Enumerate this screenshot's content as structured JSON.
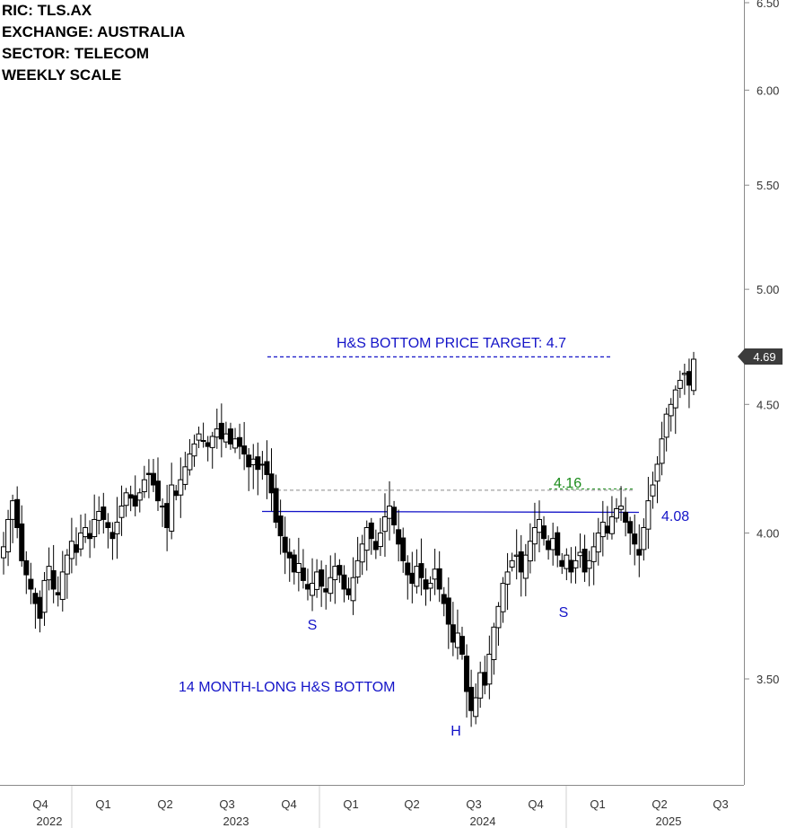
{
  "info": {
    "ric": "RIC:  TLS.AX",
    "exchange": "EXCHANGE:  AUSTRALIA",
    "sector": "SECTOR: TELECOM",
    "scale": "WEEKLY SCALE"
  },
  "chart_data": {
    "type": "candlestick",
    "ylim": [
      3.25,
      6.5
    ],
    "y_scale": "log",
    "yticks": [
      "6.50",
      "6.00",
      "5.50",
      "5.00",
      "4.50",
      "4.00",
      "3.50"
    ],
    "ytick_values": [
      6.5,
      6.0,
      5.5,
      5.0,
      4.5,
      4.0,
      3.5
    ],
    "last_price": "4.69",
    "x_quarters": [
      {
        "label": "Q4",
        "year": "2022"
      },
      {
        "label": "Q1",
        "year": ""
      },
      {
        "label": "Q2",
        "year": ""
      },
      {
        "label": "Q3",
        "year": "2023"
      },
      {
        "label": "Q4",
        "year": ""
      },
      {
        "label": "Q1",
        "year": ""
      },
      {
        "label": "Q2",
        "year": ""
      },
      {
        "label": "Q3",
        "year": "2024"
      },
      {
        "label": "Q4",
        "year": ""
      },
      {
        "label": "Q1",
        "year": ""
      },
      {
        "label": "Q2",
        "year": "2025"
      },
      {
        "label": "Q3",
        "year": ""
      }
    ],
    "levels": {
      "target": 4.7,
      "neckline_high": 4.16,
      "neckline": 4.08
    },
    "annotations": {
      "target_label": "H&S BOTTOM PRICE TARGET: 4.7",
      "high_label": "4.16",
      "neck_label": "4.08",
      "left_shoulder": "S",
      "head": "H",
      "right_shoulder": "S",
      "pattern": "14 MONTH-LONG H&S BOTTOM"
    },
    "closes": [
      3.95,
      4.05,
      4.12,
      4.02,
      3.9,
      3.85,
      3.8,
      3.75,
      3.7,
      3.83,
      3.88,
      3.8,
      3.78,
      3.86,
      3.92,
      3.97,
      3.93,
      4.0,
      4.02,
      3.98,
      4.05,
      4.08,
      4.05,
      4.02,
      3.98,
      4.04,
      4.1,
      4.15,
      4.13,
      4.1,
      4.15,
      4.2,
      4.22,
      4.18,
      4.12,
      4.1,
      4.02,
      4.18,
      4.14,
      4.2,
      4.25,
      4.3,
      4.34,
      4.38,
      4.35,
      4.33,
      4.37,
      4.4,
      4.36,
      4.38,
      4.34,
      4.36,
      4.33,
      4.3,
      4.25,
      4.28,
      4.24,
      4.26,
      4.22,
      4.15,
      4.04,
      3.99,
      3.93,
      3.91,
      3.86,
      3.89,
      3.83,
      3.8,
      3.82,
      3.86,
      3.81,
      3.79,
      3.84,
      3.88,
      3.85,
      3.8,
      3.78,
      3.84,
      3.9,
      3.96,
      4.02,
      3.98,
      3.94,
      4.0,
      4.06,
      4.1,
      4.03,
      3.96,
      3.9,
      3.85,
      3.82,
      3.88,
      3.84,
      3.8,
      3.82,
      3.87,
      3.8,
      3.75,
      3.68,
      3.62,
      3.65,
      3.58,
      3.46,
      3.4,
      3.44,
      3.52,
      3.48,
      3.58,
      3.67,
      3.74,
      3.82,
      3.86,
      3.9,
      3.92,
      3.86,
      3.92,
      3.97,
      4.02,
      4.05,
      3.98,
      3.94,
      3.98,
      3.92,
      3.88,
      3.92,
      3.86,
      3.9,
      3.93,
      3.86,
      3.9,
      3.95,
      4.0,
      4.04,
      4.0,
      4.06,
      4.09,
      4.1,
      4.04,
      4.0,
      3.96,
      3.92,
      4.02,
      4.12,
      4.18,
      4.26,
      4.36,
      4.46,
      4.5,
      4.56,
      4.6,
      4.63,
      4.58,
      4.69
    ]
  }
}
